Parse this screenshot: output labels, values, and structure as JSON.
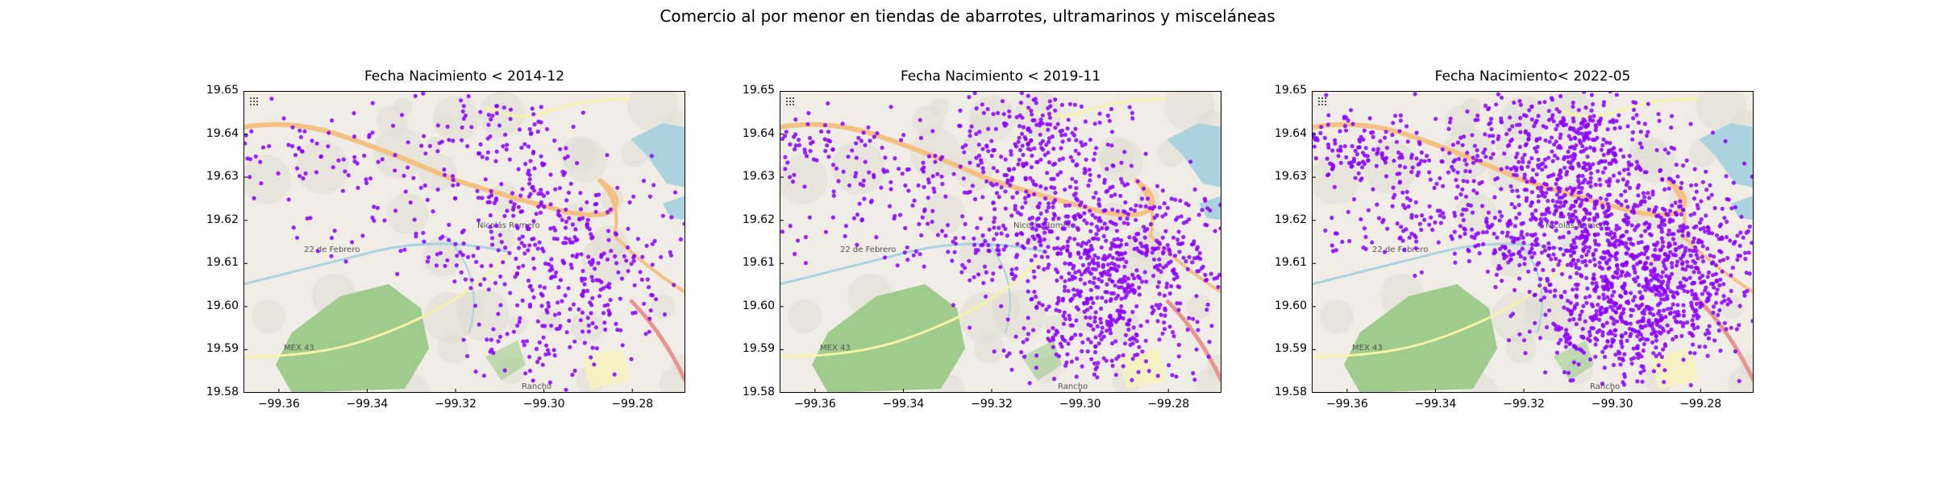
{
  "figure": {
    "title": "Comercio al por menor en tiendas de abarrotes, ultramarinos y misceláneas"
  },
  "colors": {
    "dot": "#8B00FF",
    "land": "#f0ede7",
    "water": "#aad3df",
    "forest": "#9fcb8d",
    "motorway": "#f5c183",
    "road": "#f6f2a6",
    "urban": "#e1ddd6"
  },
  "panels": [
    {
      "title": "Fecha Nacimiento < 2014-12",
      "density_level": 1
    },
    {
      "title": "Fecha Nacimiento < 2019-11",
      "density_level": 2
    },
    {
      "title": "Fecha Nacimiento< 2022-05",
      "density_level": 3
    }
  ],
  "axes": {
    "xlim": [
      -99.368,
      -99.268
    ],
    "ylim": [
      19.58,
      19.65
    ],
    "x_ticks": [
      "−99.36",
      "−99.34",
      "−99.32",
      "−99.30",
      "−99.28"
    ],
    "x_tick_values": [
      -99.36,
      -99.34,
      -99.32,
      -99.3,
      -99.28
    ],
    "y_ticks": [
      "19.65",
      "19.64",
      "19.63",
      "19.62",
      "19.61",
      "19.60",
      "19.59",
      "19.58"
    ],
    "y_tick_values": [
      19.65,
      19.64,
      19.63,
      19.62,
      19.61,
      19.6,
      19.59,
      19.58
    ]
  },
  "map_labels": {
    "town": "Nicolás Romero",
    "road": "MEX 43",
    "locality": "22 de Febrero",
    "rancho": "Rancho"
  }
}
